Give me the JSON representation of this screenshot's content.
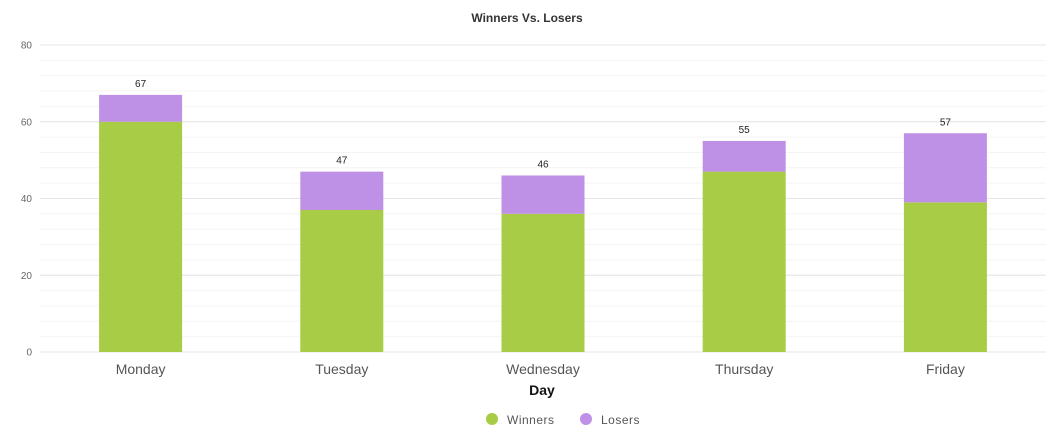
{
  "chart_data": {
    "type": "bar",
    "stacked": true,
    "title": "Winners Vs. Losers",
    "xlabel": "Day",
    "ylabel": "",
    "categories": [
      "Monday",
      "Tuesday",
      "Wednesday",
      "Thursday",
      "Friday"
    ],
    "series": [
      {
        "name": "Winners",
        "color": "#a8cc45",
        "values": [
          60,
          37,
          36,
          47,
          39
        ]
      },
      {
        "name": "Losers",
        "color": "#bf91e6",
        "values": [
          7,
          10,
          10,
          8,
          18
        ]
      }
    ],
    "totals": [
      "67",
      "47",
      "46",
      "55",
      "57"
    ],
    "ylim": [
      0,
      80
    ],
    "yticks": [
      "0",
      "20",
      "40",
      "60",
      "80"
    ],
    "grid": true,
    "legend": "bottom-center"
  }
}
